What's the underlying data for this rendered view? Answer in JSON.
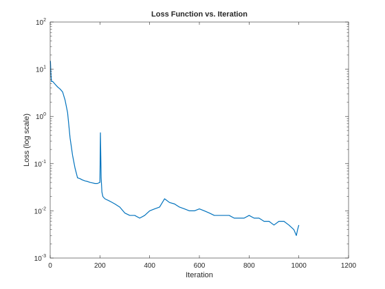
{
  "chart_data": {
    "type": "line",
    "title": "Loss Function vs. Iteration",
    "xlabel": "Iteration",
    "ylabel": "Loss (log scale)",
    "xlim": [
      0,
      1200
    ],
    "ylim": [
      0.001,
      100
    ],
    "yscale": "log",
    "grid": false,
    "x_ticks": [
      {
        "value": 0,
        "label": "0"
      },
      {
        "value": 200,
        "label": "200"
      },
      {
        "value": 400,
        "label": "400"
      },
      {
        "value": 600,
        "label": "600"
      },
      {
        "value": 800,
        "label": "800"
      },
      {
        "value": 1000,
        "label": "1000"
      },
      {
        "value": 1200,
        "label": "1200"
      }
    ],
    "y_ticks": [
      {
        "value": 0.001,
        "base": "10",
        "exp": "-3"
      },
      {
        "value": 0.01,
        "base": "10",
        "exp": "-2"
      },
      {
        "value": 0.1,
        "base": "10",
        "exp": "-1"
      },
      {
        "value": 1,
        "base": "10",
        "exp": "0"
      },
      {
        "value": 10,
        "base": "10",
        "exp": "1"
      },
      {
        "value": 100,
        "base": "10",
        "exp": "2"
      }
    ],
    "series": [
      {
        "color": "#0072bd",
        "x": [
          1,
          3,
          5,
          10,
          20,
          30,
          40,
          50,
          60,
          70,
          80,
          90,
          100,
          110,
          120,
          130,
          140,
          150,
          160,
          170,
          180,
          190,
          200,
          202,
          205,
          208,
          212,
          220,
          240,
          260,
          280,
          300,
          320,
          340,
          360,
          380,
          400,
          420,
          440,
          460,
          480,
          500,
          520,
          540,
          560,
          580,
          600,
          620,
          640,
          660,
          680,
          700,
          720,
          740,
          760,
          780,
          800,
          820,
          840,
          860,
          880,
          900,
          920,
          940,
          960,
          980,
          990,
          995,
          1000
        ],
        "y": [
          15,
          8,
          5.5,
          5.5,
          4.8,
          4.2,
          3.8,
          3.3,
          2.2,
          1.2,
          0.35,
          0.15,
          0.08,
          0.05,
          0.048,
          0.045,
          0.043,
          0.042,
          0.04,
          0.039,
          0.038,
          0.038,
          0.04,
          0.45,
          0.05,
          0.025,
          0.02,
          0.018,
          0.016,
          0.014,
          0.012,
          0.009,
          0.008,
          0.008,
          0.007,
          0.008,
          0.01,
          0.011,
          0.012,
          0.018,
          0.015,
          0.014,
          0.012,
          0.011,
          0.01,
          0.01,
          0.011,
          0.01,
          0.009,
          0.008,
          0.008,
          0.008,
          0.008,
          0.007,
          0.007,
          0.007,
          0.008,
          0.007,
          0.007,
          0.006,
          0.006,
          0.005,
          0.006,
          0.006,
          0.005,
          0.004,
          0.003,
          0.004,
          0.005
        ]
      }
    ]
  }
}
